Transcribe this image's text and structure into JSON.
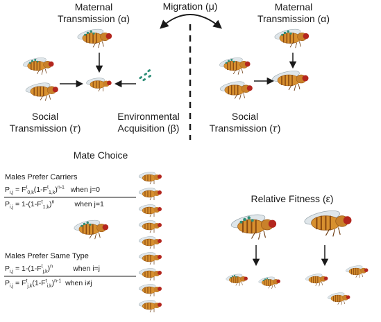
{
  "top_left": {
    "maternal_line1": "Maternal",
    "maternal_line2": "Transmission (α)",
    "social_line1": "Social",
    "social_line2": "Transmission (𝜏)",
    "env_line1": "Environmental",
    "env_line2": "Acquisition (β)"
  },
  "migration": "Migration (μ)",
  "top_right": {
    "maternal_line1": "Maternal",
    "maternal_line2": "Transmission (α)",
    "social_line1": "Social",
    "social_line2": "Transmission (𝜏)"
  },
  "mate_choice": {
    "title": "Mate Choice",
    "carriers_heading": "Males Prefer Carriers",
    "carriers_eq1": {
      "lhs": "P",
      "lhs_sub": "i,j",
      "body": "= F",
      "sup1": "t",
      "sub1": "0,k",
      "mid": "(1-F",
      "sup2": "t",
      "sub2": "1,k",
      "end": ")",
      "exp": "n-1",
      "cond": "when j=0"
    },
    "carriers_eq2": {
      "lhs": "P",
      "lhs_sub": "i,j",
      "body": "= 1-(1-F",
      "sup1": "t",
      "sub1": "1,k",
      "end": ")",
      "exp": "n",
      "cond": "when j=1"
    },
    "same_heading": "Males Prefer Same Type",
    "same_eq1": {
      "lhs": "P",
      "lhs_sub": "i,j",
      "body": "= 1-(1-F",
      "sup1": "t",
      "sub1": "j,k",
      "end": ")",
      "exp": "n",
      "cond": "when i=j"
    },
    "same_eq2": {
      "lhs": "P",
      "lhs_sub": "i,j",
      "body": "= F",
      "sup1": "t",
      "sub1": "j,k",
      "mid": "(1-F",
      "sup2": "t",
      "sub2": "i,k",
      "end": ")",
      "exp": "n-1",
      "cond": "when i≠j"
    }
  },
  "fitness": {
    "title": "Relative Fitness (ε)"
  },
  "colors": {
    "fly_body": "#d7902f",
    "fly_stripe": "#8a4a12",
    "fly_eye": "#b3261e",
    "wing": "#dfe6ea",
    "bacteria": "#2f8f78",
    "ink": "#1a1a1a"
  }
}
